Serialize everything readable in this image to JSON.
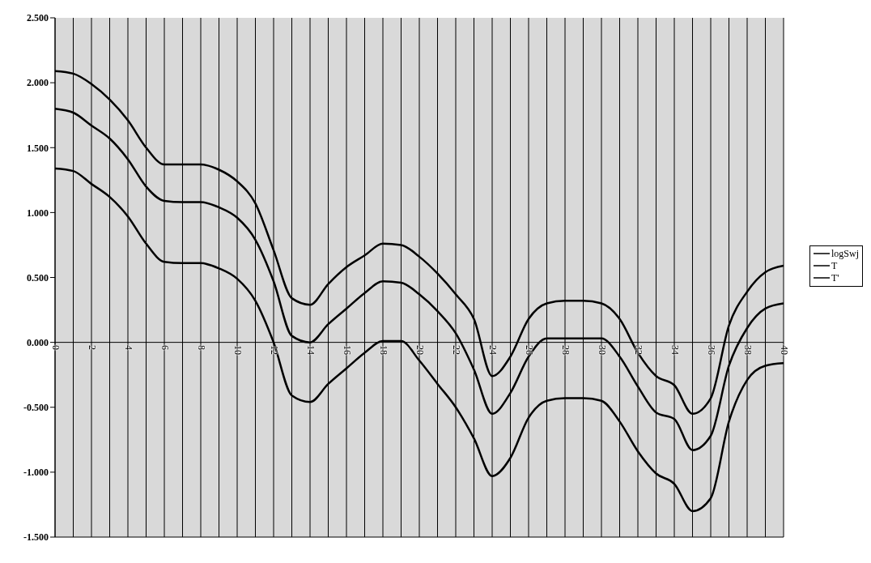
{
  "chart_data": {
    "type": "line",
    "x": [
      0,
      1,
      2,
      3,
      4,
      5,
      6,
      7,
      8,
      9,
      10,
      11,
      12,
      13,
      14,
      15,
      16,
      17,
      18,
      19,
      20,
      21,
      22,
      23,
      24,
      25,
      26,
      27,
      28,
      29,
      30,
      31,
      32,
      33,
      34,
      35,
      36,
      37,
      38,
      39,
      40
    ],
    "series": [
      {
        "name": "logSwj",
        "color": "#000000",
        "values": [
          1.8,
          1.77,
          1.67,
          1.57,
          1.41,
          1.2,
          1.09,
          1.08,
          1.08,
          1.04,
          0.96,
          0.79,
          0.47,
          0.05,
          0.0,
          0.14,
          0.26,
          0.38,
          0.47,
          0.46,
          0.37,
          0.24,
          0.07,
          -0.21,
          -0.55,
          -0.39,
          -0.11,
          0.03,
          0.03,
          0.03,
          0.03,
          -0.11,
          -0.34,
          -0.54,
          -0.59,
          -0.83,
          -0.72,
          -0.18,
          0.11,
          0.26,
          0.3
        ]
      },
      {
        "name": "T",
        "color": "#000000",
        "values": [
          2.09,
          2.07,
          1.99,
          1.87,
          1.71,
          1.5,
          1.37,
          1.37,
          1.37,
          1.33,
          1.24,
          1.07,
          0.71,
          0.34,
          0.29,
          0.45,
          0.58,
          0.67,
          0.76,
          0.75,
          0.66,
          0.53,
          0.37,
          0.18,
          -0.26,
          -0.11,
          0.18,
          0.3,
          0.32,
          0.32,
          0.3,
          0.18,
          -0.08,
          -0.26,
          -0.33,
          -0.55,
          -0.43,
          0.13,
          0.39,
          0.54,
          0.59
        ]
      },
      {
        "name": "T'",
        "color": "#000000",
        "values": [
          1.34,
          1.32,
          1.22,
          1.12,
          0.97,
          0.76,
          0.62,
          0.61,
          0.61,
          0.57,
          0.49,
          0.32,
          0.0,
          -0.41,
          -0.46,
          -0.32,
          -0.2,
          -0.08,
          0.01,
          0.01,
          -0.14,
          -0.32,
          -0.5,
          -0.74,
          -1.03,
          -0.89,
          -0.58,
          -0.45,
          -0.43,
          -0.43,
          -0.45,
          -0.61,
          -0.84,
          -1.01,
          -1.09,
          -1.3,
          -1.2,
          -0.61,
          -0.29,
          -0.18,
          -0.16
        ]
      }
    ],
    "xlim": [
      0,
      40
    ],
    "xticks": [
      0,
      {
        "value": 1,
        "label": null
      },
      2,
      {
        "value": 3,
        "label": null
      },
      4,
      {
        "value": 5,
        "label": null
      },
      6,
      {
        "value": 7,
        "label": null
      },
      8,
      {
        "value": 9,
        "label": null
      },
      10,
      {
        "value": 11,
        "label": null
      },
      12,
      {
        "value": 13,
        "label": null
      },
      14,
      {
        "value": 15,
        "label": null
      },
      16,
      {
        "value": 17,
        "label": null
      },
      18,
      {
        "value": 19,
        "label": null
      },
      20,
      {
        "value": 21,
        "label": null
      },
      22,
      {
        "value": 23,
        "label": null
      },
      24,
      {
        "value": 25,
        "label": null
      },
      26,
      {
        "value": 27,
        "label": null
      },
      28,
      {
        "value": 29,
        "label": null
      },
      30,
      {
        "value": 31,
        "label": null
      },
      32,
      {
        "value": 33,
        "label": null
      },
      34,
      {
        "value": 35,
        "label": null
      },
      36,
      {
        "value": 37,
        "label": null
      },
      38,
      {
        "value": 39,
        "label": null
      },
      40
    ],
    "ylim": [
      -1.5,
      2.5
    ],
    "yticks": [
      {
        "value": -1.5,
        "label": "-1.500"
      },
      {
        "value": -1,
        "label": "-1.000"
      },
      {
        "value": -0.5,
        "label": "-0.500"
      },
      {
        "value": 0,
        "label": "0.000"
      },
      {
        "value": 0.5,
        "label": "0.500"
      },
      {
        "value": 1,
        "label": "1.000"
      },
      {
        "value": 1.5,
        "label": "1.500"
      },
      {
        "value": 2,
        "label": "2.000"
      },
      {
        "value": 2.5,
        "label": "2.500"
      }
    ],
    "grid": "x",
    "legend": "right",
    "marker": "none",
    "line_style": "solid"
  }
}
